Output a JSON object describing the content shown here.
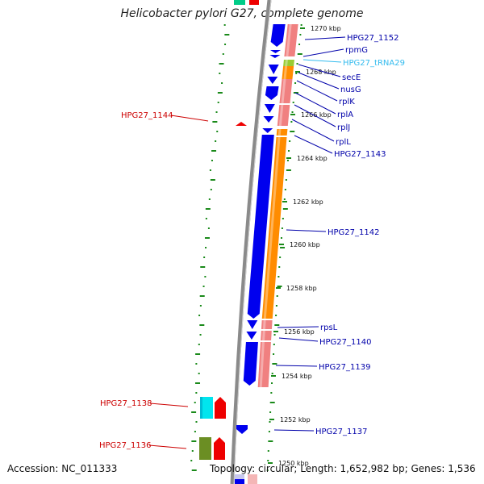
{
  "title": "Helicobacter pylori G27, complete genome",
  "footer": {
    "accession": "Accession: NC_011333",
    "topology": "Topology: circular; Length: 1,652,982 bp; Genes: 1,536"
  },
  "colors": {
    "forward_cds": "#0000ee",
    "orf": "#ff8c00",
    "gene_pink": "#f08080",
    "reverse_cds": "#ee0000",
    "trna": "#99cc33",
    "rrna_cyan": "#00e5ee",
    "olive": "#6b8e23",
    "gc_marks": "#1a8a1a",
    "blue_label": "#0000aa",
    "red_label": "#cc0000",
    "trna_label": "#33bbee"
  },
  "ticks": [
    "1270 kbp",
    "1268 kbp",
    "1266 kbp",
    "1264 kbp",
    "1262 kbp",
    "1260 kbp",
    "1258 kbp",
    "1256 kbp",
    "1254 kbp",
    "1252 kbp",
    "1250 kbp"
  ],
  "right_labels": [
    "HPG27_1152",
    "rpmG",
    "HPG27_tRNA29",
    "secE",
    "nusG",
    "rplK",
    "rplA",
    "rplJ",
    "rplL",
    "HPG27_1143",
    "HPG27_1142",
    "rpsL",
    "HPG27_1140",
    "HPG27_1139",
    "HPG27_1137"
  ],
  "left_labels": [
    "HPG27_1144",
    "HPG27_1138",
    "HPG27_1136"
  ]
}
